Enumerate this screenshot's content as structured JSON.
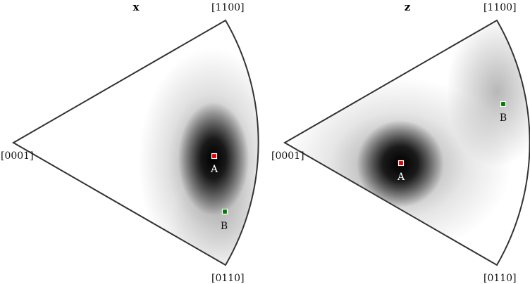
{
  "panels": [
    {
      "title": "x",
      "corner_labels": {
        "left": "[0001]",
        "top": "[1100]",
        "bottom": "[0110]"
      },
      "markers": [
        {
          "label": "A",
          "color": "#e00000"
        },
        {
          "label": "B",
          "color": "#007a00"
        }
      ]
    },
    {
      "title": "z",
      "corner_labels": {
        "left": "[0001]",
        "top": "[1100]",
        "bottom": "[0110]"
      },
      "markers": [
        {
          "label": "A",
          "color": "#e00000"
        },
        {
          "label": "B",
          "color": "#007a00"
        }
      ]
    }
  ]
}
